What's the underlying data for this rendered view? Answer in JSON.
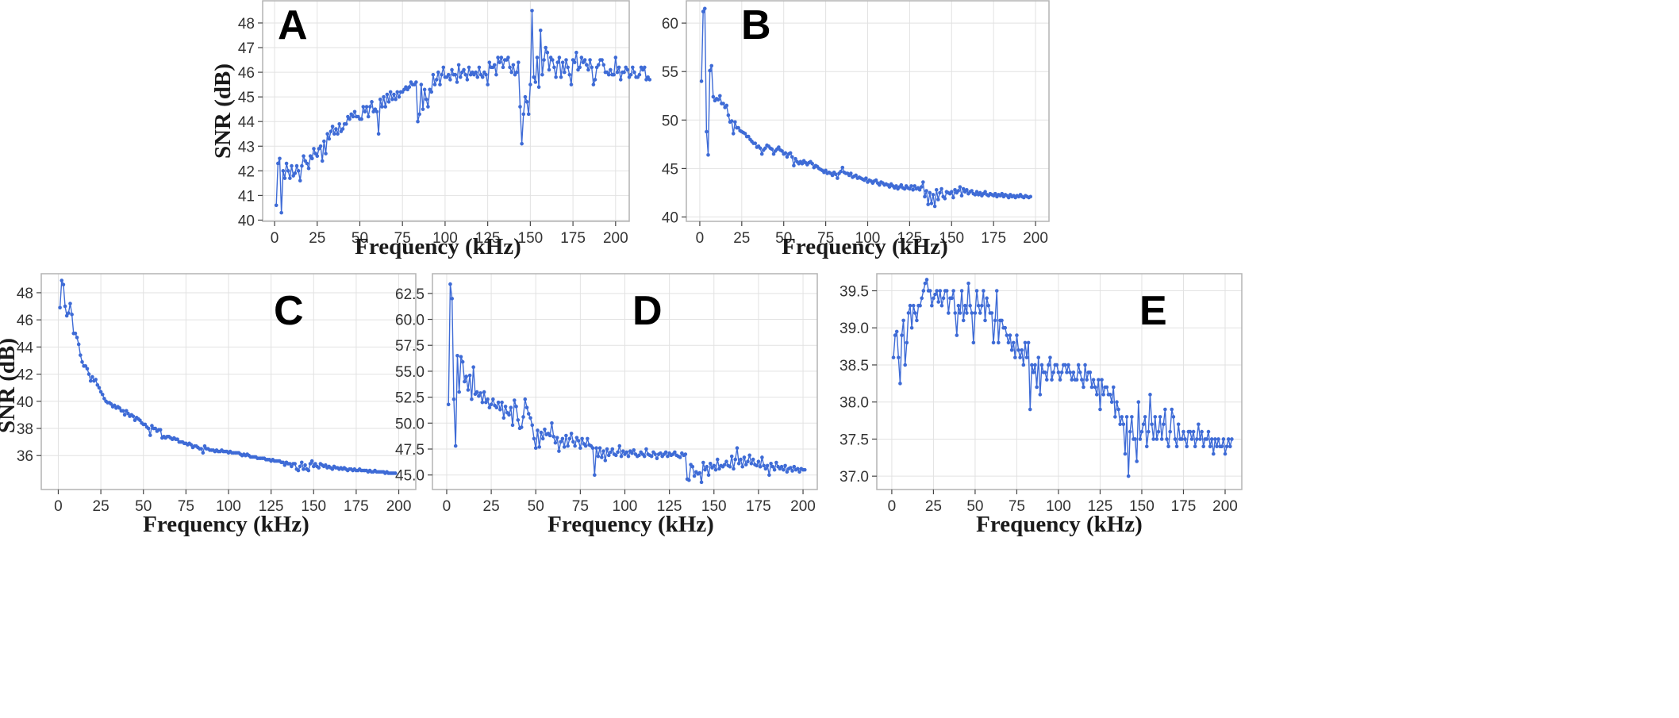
{
  "colors": {
    "series": "#3e6bd6",
    "grid": "#e2e2e2",
    "frame": "#b4b4b4"
  },
  "chart_data": [
    {
      "panel": "A",
      "type": "line",
      "label": "A",
      "xlabel": "Frequency (kHz)",
      "ylabel": "SNR (dB)",
      "xlim": [
        -7,
        208
      ],
      "ylim": [
        39.95,
        48.9
      ],
      "xticks": [
        0,
        25,
        50,
        75,
        100,
        125,
        150,
        175,
        200
      ],
      "yticks": [
        40,
        41,
        42,
        43,
        44,
        45,
        46,
        47,
        48
      ],
      "ytick_labels": [
        "40",
        "41",
        "42",
        "43",
        "44",
        "45",
        "46",
        "47",
        "48"
      ],
      "x_start": 1,
      "x_step": 1,
      "values": [
        40.6,
        42.3,
        42.5,
        40.3,
        42.0,
        41.7,
        42.3,
        42.0,
        41.7,
        42.2,
        41.8,
        41.9,
        42.2,
        42.0,
        41.6,
        42.2,
        42.6,
        42.4,
        42.3,
        42.1,
        42.6,
        42.5,
        42.9,
        42.7,
        42.6,
        42.9,
        43.0,
        42.4,
        43.2,
        42.7,
        43.5,
        43.3,
        43.6,
        43.8,
        43.5,
        43.7,
        43.5,
        43.9,
        43.6,
        43.7,
        43.9,
        43.9,
        44.2,
        44.1,
        44.3,
        44.2,
        44.4,
        44.2,
        44.2,
        44.1,
        44.1,
        44.6,
        44.4,
        44.6,
        44.2,
        44.6,
        44.8,
        44.4,
        44.5,
        44.4,
        43.5,
        44.9,
        44.6,
        45.0,
        44.6,
        45.1,
        44.8,
        45.2,
        44.9,
        45.1,
        44.9,
        45.2,
        45.0,
        45.2,
        45.2,
        45.3,
        45.4,
        45.3,
        45.4,
        45.6,
        45.5,
        45.5,
        45.6,
        44.0,
        44.3,
        45.5,
        44.5,
        45.3,
        44.9,
        44.6,
        45.3,
        45.2,
        45.9,
        45.5,
        45.7,
        46.0,
        45.5,
        45.9,
        46.2,
        45.8,
        45.8,
        45.9,
        45.7,
        46.1,
        45.9,
        45.9,
        45.6,
        46.3,
        45.8,
        46.0,
        46.1,
        45.9,
        45.7,
        46.2,
        45.9,
        46.0,
        45.9,
        46.0,
        45.8,
        46.2,
        45.9,
        45.8,
        46.0,
        45.9,
        45.5,
        46.4,
        46.2,
        46.2,
        46.3,
        45.9,
        46.6,
        46.4,
        46.6,
        46.2,
        46.5,
        46.5,
        46.6,
        46.2,
        46.0,
        46.3,
        45.9,
        46.0,
        46.4,
        44.6,
        43.1,
        44.3,
        45.0,
        44.8,
        44.3,
        45.5,
        48.5,
        45.8,
        45.6,
        46.6,
        45.4,
        47.7,
        45.9,
        46.5,
        47.0,
        46.8,
        46.1,
        46.6,
        46.5,
        46.2,
        45.8,
        46.4,
        46.6,
        45.8,
        46.4,
        46.0,
        46.5,
        46.2,
        45.9,
        45.5,
        46.5,
        46.4,
        46.8,
        46.1,
        46.2,
        46.6,
        46.4,
        46.5,
        46.3,
        46.1,
        46.5,
        46.2,
        45.5,
        45.7,
        46.2,
        46.3,
        46.5,
        46.5,
        46.3,
        46.0,
        46.0,
        45.9,
        46.1,
        45.9,
        45.9,
        46.6,
        46.0,
        46.2,
        45.7,
        46.0,
        46.0,
        46.2,
        46.1,
        45.8,
        45.9,
        46.2,
        46.0,
        45.8,
        45.8,
        45.9,
        46.2,
        46.1,
        46.2,
        45.7,
        45.8,
        45.7
      ]
    },
    {
      "panel": "B",
      "type": "line",
      "label": "B",
      "xlabel": "Frequency (kHz)",
      "ylabel": "",
      "xlim": [
        -8,
        208
      ],
      "ylim": [
        39.55,
        62.3
      ],
      "xticks": [
        0,
        25,
        50,
        75,
        100,
        125,
        150,
        175,
        200
      ],
      "yticks": [
        40,
        45,
        50,
        55,
        60
      ],
      "ytick_labels": [
        "40",
        "45",
        "50",
        "55",
        "60"
      ],
      "x_start": 1,
      "x_step": 1,
      "values": [
        54.0,
        61.2,
        61.5,
        48.8,
        46.4,
        55.1,
        55.6,
        52.4,
        52.0,
        52.2,
        52.1,
        52.5,
        51.7,
        51.7,
        51.3,
        51.5,
        50.5,
        49.8,
        49.9,
        48.6,
        49.8,
        49.2,
        49.2,
        48.9,
        48.8,
        48.7,
        48.6,
        48.3,
        48.3,
        48.0,
        47.8,
        47.6,
        47.6,
        47.2,
        47.3,
        47.1,
        46.5,
        46.9,
        47.1,
        47.4,
        47.3,
        47.1,
        47.0,
        46.5,
        46.8,
        47.0,
        47.2,
        46.9,
        46.8,
        46.5,
        46.6,
        46.2,
        46.5,
        46.6,
        46.2,
        45.3,
        46.0,
        45.7,
        45.5,
        45.7,
        45.5,
        45.8,
        45.6,
        45.4,
        45.6,
        45.7,
        45.5,
        45.1,
        45.3,
        45.2,
        45.0,
        44.9,
        44.8,
        44.6,
        44.8,
        44.5,
        44.6,
        44.5,
        44.3,
        44.6,
        44.4,
        44.0,
        44.5,
        44.7,
        45.1,
        44.6,
        44.5,
        44.5,
        44.3,
        44.5,
        44.1,
        44.2,
        44.3,
        44.0,
        44.1,
        44.0,
        43.9,
        43.8,
        44.0,
        43.6,
        43.8,
        43.7,
        43.5,
        43.7,
        43.8,
        43.5,
        43.3,
        43.6,
        43.5,
        43.3,
        43.4,
        43.3,
        43.1,
        43.4,
        43.2,
        43.0,
        43.2,
        42.9,
        43.1,
        43.3,
        43.0,
        42.9,
        43.2,
        43.0,
        42.9,
        43.2,
        42.8,
        43.2,
        42.9,
        43.0,
        42.8,
        43.1,
        43.6,
        42.1,
        42.7,
        41.3,
        42.5,
        41.4,
        42.3,
        41.1,
        42.8,
        41.8,
        42.5,
        42.9,
        42.1,
        41.9,
        42.6,
        42.5,
        42.4,
        42.6,
        42.0,
        42.8,
        42.5,
        42.7,
        43.1,
        42.2,
        42.9,
        42.6,
        42.8,
        42.4,
        42.6,
        42.7,
        42.4,
        42.3,
        42.6,
        42.3,
        42.5,
        42.2,
        42.4,
        42.6,
        42.3,
        42.2,
        42.4,
        42.3,
        42.2,
        42.4,
        42.1,
        42.3,
        42.2,
        42.4,
        42.1,
        42.3,
        42.2,
        42.0,
        42.3,
        42.1,
        42.2,
        42.0,
        42.2,
        42.1,
        42.3,
        42.1,
        42.0,
        42.2,
        42.1,
        42.0,
        42.1
      ]
    },
    {
      "panel": "C",
      "type": "line",
      "label": "C",
      "xlabel": "Frequency (kHz)",
      "ylabel": "SNR (dB)",
      "xlim": [
        -10,
        210
      ],
      "ylim": [
        33.5,
        49.4
      ],
      "xticks": [
        0,
        25,
        50,
        75,
        100,
        125,
        150,
        175,
        200
      ],
      "yticks": [
        36,
        38,
        40,
        42,
        44,
        46,
        48
      ],
      "ytick_labels": [
        "36",
        "38",
        "40",
        "42",
        "44",
        "46",
        "48"
      ],
      "x_start": 1,
      "x_step": 1,
      "values": [
        46.9,
        48.9,
        48.6,
        47.0,
        46.3,
        46.5,
        47.2,
        46.4,
        45.0,
        45.0,
        44.7,
        44.2,
        43.4,
        42.9,
        42.6,
        42.6,
        42.4,
        42.0,
        41.5,
        41.8,
        41.5,
        41.6,
        41.2,
        41.0,
        40.7,
        40.5,
        40.2,
        40.0,
        39.9,
        39.9,
        39.8,
        39.6,
        39.7,
        39.5,
        39.6,
        39.5,
        39.3,
        39.3,
        39.0,
        39.3,
        39.1,
        38.9,
        39.0,
        38.9,
        38.6,
        38.8,
        38.7,
        38.6,
        38.4,
        38.3,
        38.3,
        38.1,
        38.0,
        37.5,
        38.2,
        38.0,
        38.0,
        37.8,
        37.9,
        37.9,
        37.3,
        37.4,
        37.3,
        37.4,
        37.4,
        37.3,
        37.2,
        37.3,
        37.2,
        37.2,
        37.0,
        37.0,
        37.0,
        36.9,
        36.9,
        36.8,
        36.9,
        36.8,
        36.6,
        36.7,
        36.7,
        36.6,
        36.5,
        36.5,
        36.2,
        36.7,
        36.5,
        36.5,
        36.4,
        36.4,
        36.4,
        36.3,
        36.4,
        36.3,
        36.3,
        36.4,
        36.3,
        36.3,
        36.3,
        36.2,
        36.3,
        36.2,
        36.2,
        36.2,
        36.2,
        36.2,
        36.1,
        36.0,
        36.1,
        36.0,
        36.1,
        36.0,
        35.9,
        35.9,
        35.9,
        35.9,
        35.8,
        35.8,
        35.8,
        35.8,
        35.8,
        35.7,
        35.7,
        35.7,
        35.6,
        35.7,
        35.6,
        35.6,
        35.6,
        35.6,
        35.5,
        35.5,
        35.3,
        35.5,
        35.4,
        35.4,
        35.2,
        35.4,
        35.4,
        35.0,
        34.9,
        35.2,
        35.5,
        35.0,
        35.3,
        35.0,
        34.9,
        35.4,
        35.6,
        35.2,
        35.4,
        35.2,
        35.1,
        35.4,
        35.3,
        35.2,
        35.3,
        35.1,
        35.2,
        35.1,
        35.0,
        35.2,
        35.1,
        35.1,
        35.0,
        35.1,
        35.0,
        35.1,
        35.0,
        34.9,
        35.0,
        35.0,
        34.9,
        35.0,
        34.9,
        34.9,
        35.0,
        34.9,
        34.9,
        34.9,
        34.9,
        34.8,
        34.9,
        34.8,
        34.8,
        34.9,
        34.8,
        34.8,
        34.8,
        34.8,
        34.8,
        34.7,
        34.8,
        34.7,
        34.7,
        34.7,
        34.7,
        34.7
      ]
    },
    {
      "panel": "D",
      "type": "line",
      "label": "D",
      "xlabel": "Frequency (kHz)",
      "ylabel": "",
      "xlim": [
        -8,
        208
      ],
      "ylim": [
        43.6,
        64.4
      ],
      "xticks": [
        0,
        25,
        50,
        75,
        100,
        125,
        150,
        175,
        200
      ],
      "yticks": [
        45,
        47.5,
        50,
        52.5,
        55,
        57.5,
        60,
        62.5
      ],
      "ytick_labels": [
        "45.0",
        "47.5",
        "50.0",
        "52.5",
        "55.0",
        "57.5",
        "60.0",
        "62.5"
      ],
      "x_start": 1,
      "x_step": 1,
      "values": [
        51.8,
        63.4,
        62.0,
        52.3,
        47.8,
        56.5,
        53.0,
        56.4,
        55.9,
        54.0,
        54.5,
        53.2,
        54.6,
        52.3,
        55.4,
        52.8,
        53.0,
        52.6,
        52.9,
        52.0,
        53.0,
        52.0,
        52.3,
        51.5,
        51.8,
        52.3,
        51.7,
        51.5,
        52.0,
        51.3,
        52.0,
        50.5,
        51.6,
        51.0,
        50.8,
        51.5,
        49.8,
        52.2,
        51.6,
        50.3,
        49.5,
        49.6,
        50.6,
        52.3,
        51.5,
        50.9,
        50.5,
        49.8,
        48.5,
        47.6,
        49.3,
        47.7,
        49.1,
        48.5,
        49.4,
        48.9,
        49.0,
        48.8,
        50.0,
        48.7,
        48.1,
        48.6,
        47.3,
        48.2,
        48.5,
        47.7,
        48.8,
        47.8,
        48.5,
        49.0,
        48.2,
        47.8,
        48.6,
        48.3,
        47.6,
        48.5,
        48.0,
        47.8,
        48.5,
        47.9,
        47.8,
        47.6,
        45.0,
        47.6,
        46.8,
        47.6,
        46.7,
        47.3,
        46.4,
        47.5,
        46.9,
        47.2,
        47.5,
        47.0,
        46.9,
        47.2,
        47.8,
        46.8,
        47.3,
        47.0,
        47.2,
        46.8,
        47.3,
        47.1,
        47.4,
        47.0,
        46.8,
        46.9,
        47.2,
        47.0,
        46.8,
        47.5,
        47.0,
        46.9,
        46.8,
        47.2,
        47.0,
        46.6,
        47.0,
        47.1,
        46.8,
        47.0,
        47.2,
        46.8,
        47.1,
        46.9,
        47.0,
        47.2,
        46.9,
        46.8,
        46.7,
        47.1,
        46.9,
        47.0,
        44.6,
        44.5,
        46.0,
        45.8,
        44.9,
        45.3,
        45.1,
        45.2,
        44.3,
        46.2,
        45.5,
        45.8,
        45.0,
        46.1,
        45.7,
        45.9,
        45.5,
        46.5,
        45.6,
        45.9,
        45.8,
        46.0,
        46.3,
        45.9,
        45.8,
        46.8,
        45.6,
        46.5,
        47.6,
        46.1,
        46.5,
        45.8,
        46.7,
        46.0,
        46.3,
        46.9,
        46.1,
        46.5,
        46.0,
        45.9,
        46.3,
        45.8,
        46.7,
        45.9,
        45.6,
        45.9,
        45.0,
        46.1,
        45.8,
        45.5,
        46.2,
        45.8,
        45.6,
        45.8,
        45.5,
        45.9,
        45.3,
        45.6,
        45.7,
        45.4,
        45.8,
        45.5,
        45.6,
        45.3,
        45.6,
        45.5,
        45.5
      ]
    },
    {
      "panel": "E",
      "type": "line",
      "label": "E",
      "xlabel": "Frequency (kHz)",
      "ylabel": "",
      "xlim": [
        -9,
        210
      ],
      "ylim": [
        36.82,
        39.73
      ],
      "xticks": [
        0,
        25,
        50,
        75,
        100,
        125,
        150,
        175,
        200
      ],
      "yticks": [
        37.0,
        37.5,
        38.0,
        38.5,
        39.0,
        39.5
      ],
      "ytick_labels": [
        "37.0",
        "37.5",
        "38.0",
        "38.5",
        "39.0",
        "39.5"
      ],
      "x_start": 1,
      "x_step": 1,
      "values": [
        38.6,
        38.9,
        38.95,
        38.6,
        38.25,
        38.9,
        39.1,
        38.5,
        38.8,
        39.2,
        39.3,
        39.0,
        39.3,
        39.2,
        39.1,
        39.3,
        39.3,
        39.4,
        39.5,
        39.6,
        39.65,
        39.5,
        39.5,
        39.3,
        39.4,
        39.45,
        39.5,
        39.35,
        39.5,
        39.3,
        39.4,
        39.5,
        39.5,
        39.2,
        39.4,
        39.4,
        39.5,
        39.2,
        38.9,
        39.3,
        39.2,
        39.5,
        39.1,
        39.3,
        39.2,
        39.6,
        39.3,
        39.2,
        38.8,
        39.2,
        39.5,
        39.3,
        39.2,
        39.3,
        39.5,
        39.1,
        39.4,
        39.3,
        39.2,
        39.2,
        38.8,
        39.1,
        39.5,
        38.8,
        39.1,
        39.1,
        39.0,
        39.0,
        38.9,
        38.8,
        38.9,
        38.7,
        38.8,
        38.6,
        38.9,
        38.7,
        38.6,
        38.7,
        38.5,
        38.8,
        38.6,
        38.8,
        37.9,
        38.5,
        38.4,
        38.5,
        38.2,
        38.6,
        38.1,
        38.5,
        38.4,
        38.4,
        38.3,
        38.5,
        38.6,
        38.3,
        38.4,
        38.5,
        38.5,
        38.4,
        38.3,
        38.4,
        38.5,
        38.5,
        38.4,
        38.5,
        38.4,
        38.3,
        38.4,
        38.3,
        38.3,
        38.5,
        38.4,
        38.3,
        38.2,
        38.5,
        38.3,
        38.4,
        38.4,
        38.2,
        38.3,
        38.2,
        38.1,
        38.3,
        37.9,
        38.3,
        38.1,
        38.2,
        38.2,
        38.1,
        38.1,
        38.0,
        38.2,
        37.8,
        38.0,
        37.9,
        37.7,
        37.8,
        37.7,
        37.3,
        37.8,
        37.0,
        37.6,
        37.8,
        37.5,
        37.5,
        37.2,
        38.0,
        37.5,
        37.6,
        37.7,
        37.8,
        37.4,
        37.6,
        38.1,
        37.7,
        37.5,
        37.8,
        37.5,
        37.6,
        37.8,
        37.5,
        37.7,
        37.9,
        37.5,
        37.4,
        37.6,
        37.9,
        37.8,
        37.5,
        37.4,
        37.7,
        37.5,
        37.5,
        37.6,
        37.5,
        37.4,
        37.6,
        37.6,
        37.5,
        37.6,
        37.4,
        37.5,
        37.7,
        37.5,
        37.6,
        37.4,
        37.5,
        37.5,
        37.6,
        37.4,
        37.5,
        37.3,
        37.5,
        37.4,
        37.5,
        37.4,
        37.4,
        37.5,
        37.3,
        37.4,
        37.5,
        37.4,
        37.5
      ]
    }
  ]
}
